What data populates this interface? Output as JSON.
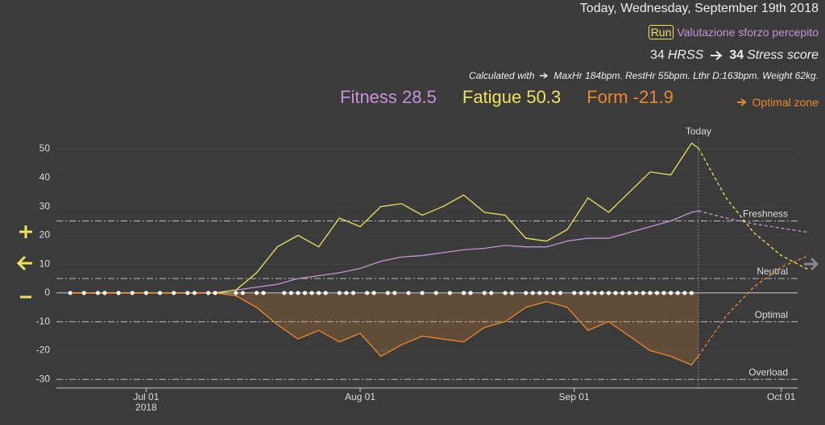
{
  "header": {
    "date": "Today, Wednesday, September 19th 2018",
    "sport": "Run",
    "activity": "Valutazione sforzo percepito",
    "hrss": 34,
    "hrss_label": "HRSS",
    "stress": 34,
    "stress_label": "Stress score",
    "calc_label": "Calculated with",
    "calc_params": "MaxHr 184bpm. RestHr 55bpm. Lthr D:163bpm. Weight 62kg.",
    "optimal_link": "Optimal zone"
  },
  "chart_data": {
    "type": "line",
    "x": [
      "2018-06-20",
      "2018-06-23",
      "2018-06-26",
      "2018-06-29",
      "2018-07-02",
      "2018-07-05",
      "2018-07-08",
      "2018-07-11",
      "2018-07-14",
      "2018-07-17",
      "2018-07-20",
      "2018-07-23",
      "2018-07-26",
      "2018-07-29",
      "2018-08-01",
      "2018-08-04",
      "2018-08-07",
      "2018-08-10",
      "2018-08-13",
      "2018-08-16",
      "2018-08-19",
      "2018-08-22",
      "2018-08-25",
      "2018-08-28",
      "2018-08-31",
      "2018-09-03",
      "2018-09-06",
      "2018-09-09",
      "2018-09-12",
      "2018-09-15",
      "2018-09-18",
      "2018-09-19"
    ],
    "series": [
      {
        "name": "Fitness",
        "color": "#c792d9",
        "values": [
          0,
          0,
          0,
          0,
          0,
          0,
          0,
          0,
          1,
          2,
          3,
          5,
          6,
          7,
          8.5,
          11,
          12.5,
          13,
          14,
          15,
          15.5,
          16.5,
          16,
          16,
          18,
          19,
          19,
          21,
          23,
          25,
          28,
          28.5
        ],
        "projected": [
          28.5,
          26,
          24,
          22.5,
          21
        ]
      },
      {
        "name": "Fatigue",
        "color": "#ede25a",
        "values": [
          0,
          0,
          0,
          0,
          0,
          0,
          0,
          0,
          1,
          7,
          16,
          20,
          16,
          26,
          23,
          30,
          31,
          27,
          30,
          34,
          28,
          27,
          19,
          18,
          22,
          33,
          28,
          35,
          42,
          41,
          52,
          50.3
        ],
        "projected": [
          50.3,
          33,
          21,
          13,
          8
        ]
      },
      {
        "name": "Form",
        "color": "#ea8a2e",
        "values": [
          0,
          0,
          0,
          0,
          0,
          0,
          0,
          0,
          -1,
          -5,
          -11,
          -16,
          -13,
          -17,
          -14,
          -22,
          -18,
          -15,
          -16,
          -17,
          -12,
          -10,
          -5,
          -3,
          -5,
          -13,
          -10,
          -15,
          -20,
          -22,
          -25,
          -21.9
        ],
        "projected": [
          -21.9,
          -8,
          2,
          9,
          13
        ],
        "area": true
      }
    ],
    "projection_x": [
      "2018-09-19",
      "2018-09-23",
      "2018-09-27",
      "2018-10-01",
      "2018-10-05"
    ],
    "activities": [
      "2018-06-20",
      "2018-06-22",
      "2018-06-24",
      "2018-06-25",
      "2018-06-27",
      "2018-06-29",
      "2018-07-01",
      "2018-07-03",
      "2018-07-05",
      "2018-07-07",
      "2018-07-08",
      "2018-07-10",
      "2018-07-11",
      "2018-07-14",
      "2018-07-15",
      "2018-07-17",
      "2018-07-18",
      "2018-07-21",
      "2018-07-22",
      "2018-07-23",
      "2018-07-24",
      "2018-07-25",
      "2018-07-26",
      "2018-07-27",
      "2018-07-29",
      "2018-07-30",
      "2018-07-31",
      "2018-08-02",
      "2018-08-03",
      "2018-08-05",
      "2018-08-06",
      "2018-08-08",
      "2018-08-10",
      "2018-08-12",
      "2018-08-14",
      "2018-08-16",
      "2018-08-17",
      "2018-08-19",
      "2018-08-20",
      "2018-08-22",
      "2018-08-23",
      "2018-08-25",
      "2018-08-26",
      "2018-08-27",
      "2018-08-28",
      "2018-08-29",
      "2018-08-30",
      "2018-09-01",
      "2018-09-02",
      "2018-09-03",
      "2018-09-04",
      "2018-09-05",
      "2018-09-06",
      "2018-09-07",
      "2018-09-08",
      "2018-09-09",
      "2018-09-10",
      "2018-09-11",
      "2018-09-12",
      "2018-09-13",
      "2018-09-14",
      "2018-09-15",
      "2018-09-16",
      "2018-09-17",
      "2018-09-18"
    ],
    "reference_lines": [
      {
        "label": "Freshness",
        "value": 25
      },
      {
        "label": "Neutral",
        "value": 5
      },
      {
        "label": "Optimal",
        "value": -10
      },
      {
        "label": "Overload",
        "value": -30
      }
    ],
    "today": "2018-09-19",
    "today_label": "Today",
    "xlim": [
      "2018-06-18",
      "2018-10-05"
    ],
    "xticks": [
      {
        "value": "2018-07-01",
        "label": "Jul 01",
        "sublabel": "2018"
      },
      {
        "value": "2018-08-01",
        "label": "Aug 01"
      },
      {
        "value": "2018-09-01",
        "label": "Sep 01"
      },
      {
        "value": "2018-10-01",
        "label": "Oct 01"
      }
    ],
    "ylim": [
      -33,
      57
    ],
    "yticks": [
      -30,
      -20,
      -10,
      0,
      10,
      20,
      30,
      40,
      50
    ],
    "grid": true
  }
}
